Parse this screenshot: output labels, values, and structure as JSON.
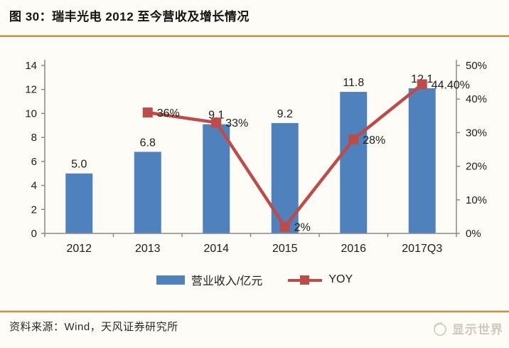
{
  "header": {
    "title": "图 30：瑞丰光电 2012 至今营收及增长情况"
  },
  "chart_data": {
    "type": "bar",
    "subtype": "bar+line dual-axis combo",
    "categories": [
      "2012",
      "2013",
      "2014",
      "2015",
      "2016",
      "2017Q3"
    ],
    "series": [
      {
        "name": "营业收入/亿元",
        "type": "bar",
        "axis": "left",
        "color": "#4f81bd",
        "values": [
          5.0,
          6.8,
          9.1,
          9.2,
          11.8,
          12.1
        ],
        "labels": [
          "5.0",
          "6.8",
          "9.1",
          "9.2",
          "11.8",
          "12.1"
        ]
      },
      {
        "name": "YOY",
        "type": "line",
        "axis": "right",
        "color": "#be4b48",
        "values": [
          null,
          36,
          33,
          2,
          28,
          44.4
        ],
        "labels": [
          "",
          "36%",
          "33%",
          "2%",
          "28%",
          "44.40%"
        ]
      }
    ],
    "left_axis": {
      "min": 0,
      "max": 14,
      "step": 2,
      "ticks": [
        "0",
        "2",
        "4",
        "6",
        "8",
        "10",
        "12",
        "14"
      ]
    },
    "right_axis": {
      "min": 0,
      "max": 50,
      "step": 10,
      "ticks": [
        "0%",
        "10%",
        "20%",
        "30%",
        "40%",
        "50%"
      ]
    },
    "grid": false,
    "legend_position": "bottom",
    "title": "瑞丰光电 2012 至今营收及增长情况"
  },
  "footer": {
    "source": "资料来源：Wind，天风证券研究所",
    "brand": "显示世界"
  },
  "colors": {
    "bar_blue": "#4f81bd",
    "line_red": "#be4b48",
    "rule_gold": "#bd8233",
    "axis_gray": "#8a8a8a",
    "text_dark": "#1c1c1c",
    "brand_gray": "#cfc8ba",
    "background": "#fdfcf6"
  }
}
